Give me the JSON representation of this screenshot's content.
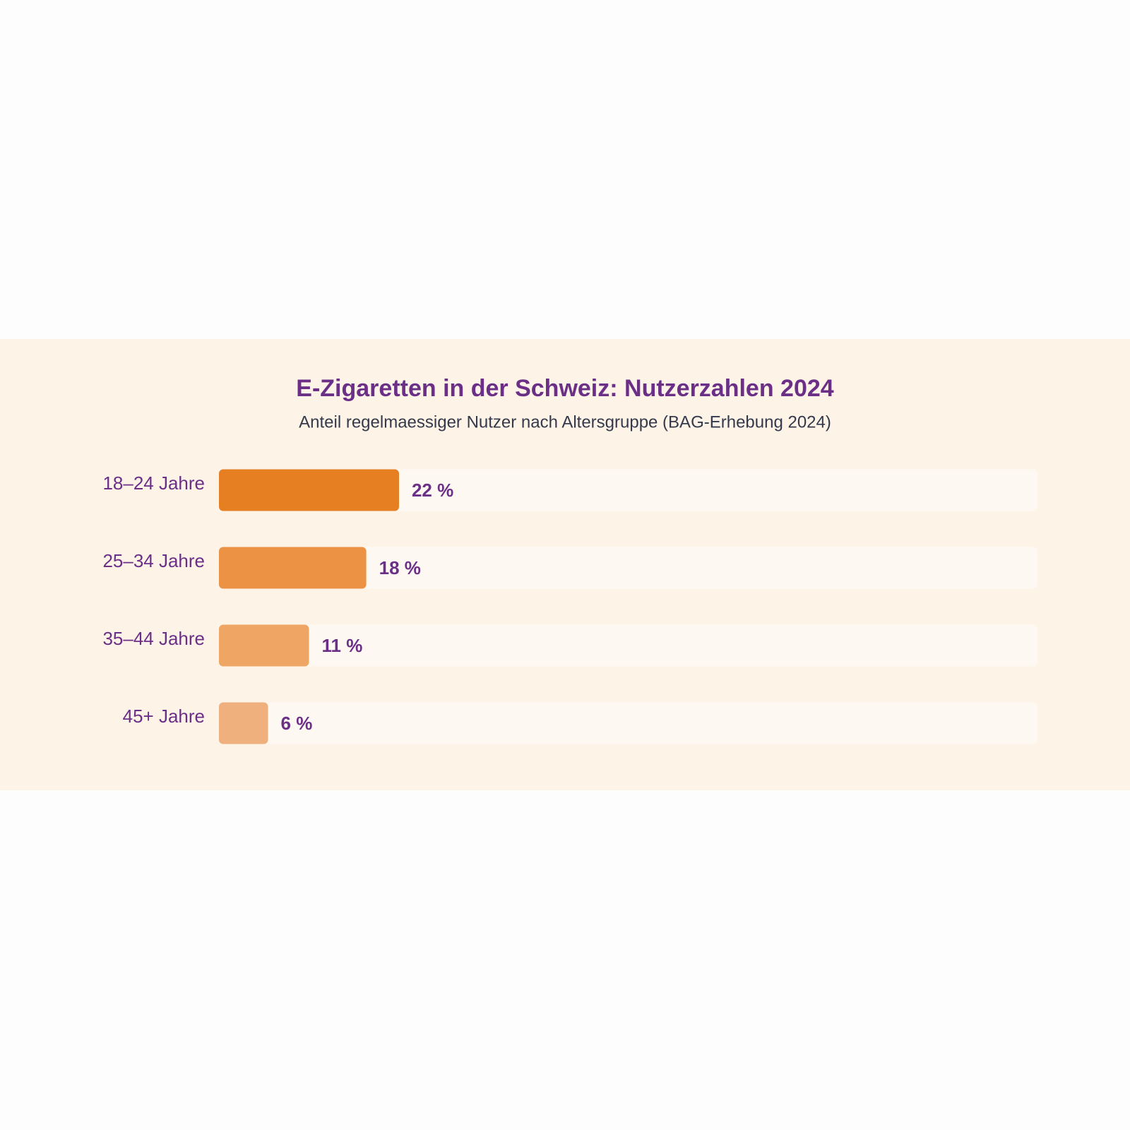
{
  "chart_data": {
    "type": "bar",
    "orientation": "horizontal",
    "title": "E-Zigaretten in der Schweiz: Nutzerzahlen 2024",
    "subtitle": "Anteil regelmaessiger Nutzer nach Altersgruppe (BAG-Erhebung 2024)",
    "categories": [
      "18–24 Jahre",
      "25–34 Jahre",
      "35–44 Jahre",
      "45+ Jahre"
    ],
    "values": [
      22,
      18,
      11,
      6
    ],
    "value_labels": [
      "22 %",
      "18 %",
      "11 %",
      "6 %"
    ],
    "colors": [
      "#e67e22",
      "#eb9244",
      "#efa563",
      "#efb07d"
    ],
    "xlim": [
      0,
      100
    ]
  }
}
